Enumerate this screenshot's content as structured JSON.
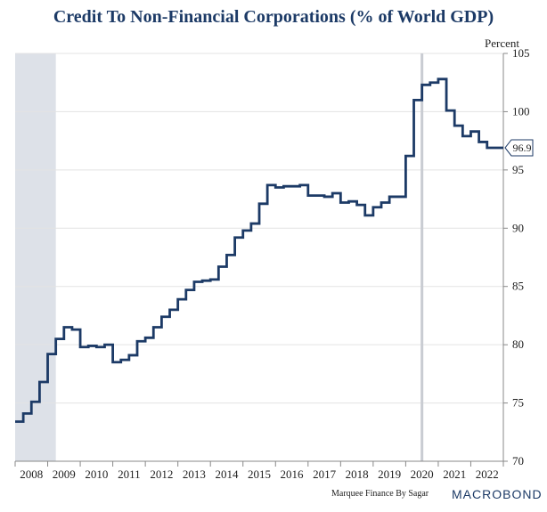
{
  "chart_data": {
    "type": "line",
    "step": true,
    "title": "Credit To Non-Financial Corporations (% of World GDP)",
    "ylabel": "Percent",
    "ylim": [
      70,
      105
    ],
    "yticks": [
      70,
      75,
      80,
      85,
      90,
      95,
      100,
      105
    ],
    "xlim": [
      2007.75,
      2022.75
    ],
    "xtick_labels": [
      "2008",
      "2009",
      "2010",
      "2011",
      "2012",
      "2013",
      "2014",
      "2015",
      "2016",
      "2017",
      "2018",
      "2019",
      "2020",
      "2021",
      "2022"
    ],
    "grid": true,
    "recession_band": [
      2007.75,
      2009.0
    ],
    "vertical_marker": 2020.25,
    "last_value_label": "96.9",
    "source": "Marquee Finance By Sagar",
    "brand": "MACROBOND",
    "series": [
      {
        "name": "Credit To Non-Financial Corporations",
        "color": "#1c3a66",
        "x": [
          2007.75,
          2008.0,
          2008.25,
          2008.5,
          2008.75,
          2009.0,
          2009.25,
          2009.5,
          2009.75,
          2010.0,
          2010.25,
          2010.5,
          2010.75,
          2011.0,
          2011.25,
          2011.5,
          2011.75,
          2012.0,
          2012.25,
          2012.5,
          2012.75,
          2013.0,
          2013.25,
          2013.5,
          2013.75,
          2014.0,
          2014.25,
          2014.5,
          2014.75,
          2015.0,
          2015.25,
          2015.5,
          2015.75,
          2016.0,
          2016.25,
          2016.5,
          2016.75,
          2017.0,
          2017.25,
          2017.5,
          2017.75,
          2018.0,
          2018.25,
          2018.5,
          2018.75,
          2019.0,
          2019.25,
          2019.5,
          2019.75,
          2020.0,
          2020.25,
          2020.5,
          2020.75,
          2021.0,
          2021.25,
          2021.5,
          2021.75,
          2022.0,
          2022.25,
          2022.5
        ],
        "y": [
          73.4,
          74.1,
          75.1,
          76.8,
          79.2,
          80.5,
          81.5,
          81.3,
          79.8,
          79.9,
          79.8,
          80.0,
          78.5,
          78.7,
          79.1,
          80.3,
          80.6,
          81.5,
          82.4,
          83.0,
          83.9,
          84.7,
          85.4,
          85.5,
          85.6,
          86.7,
          87.7,
          89.2,
          89.8,
          90.4,
          92.1,
          93.7,
          93.5,
          93.6,
          93.6,
          93.7,
          92.8,
          92.8,
          92.7,
          93.0,
          92.2,
          92.3,
          92.0,
          91.1,
          91.8,
          92.2,
          92.7,
          92.7,
          96.2,
          101.0,
          102.3,
          102.5,
          102.8,
          100.1,
          98.8,
          97.9,
          98.3,
          97.4,
          96.9,
          96.9
        ]
      }
    ]
  }
}
